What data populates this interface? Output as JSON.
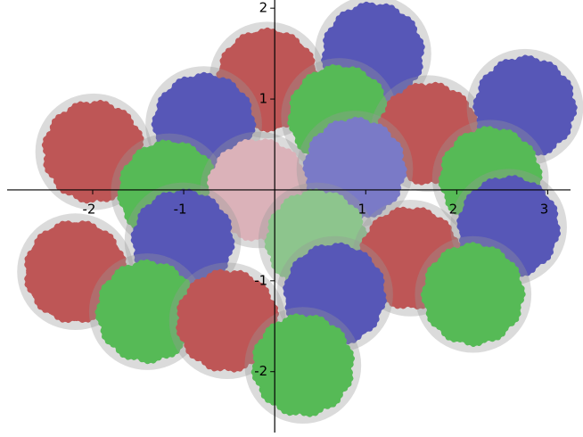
{
  "chart_data": {
    "type": "tiling",
    "xlim": [
      -2.94,
      3.25
    ],
    "ylim": [
      -2.67,
      2.09
    ],
    "xticks": [
      -2,
      -1,
      1,
      2,
      3
    ],
    "yticks": [
      -2,
      -1,
      1,
      2
    ],
    "radius": 0.64,
    "circle_color": "#999999",
    "tiles": [
      {
        "x": -0.08,
        "y": 1.21,
        "color": "#d33333"
      },
      {
        "x": 1.08,
        "y": 1.5,
        "color": "#3535c8"
      },
      {
        "x": -1.99,
        "y": 0.42,
        "color": "#d33333"
      },
      {
        "x": -0.78,
        "y": 0.72,
        "color": "#3535c8"
      },
      {
        "x": 0.71,
        "y": 0.81,
        "color": "#33cc33"
      },
      {
        "x": 1.69,
        "y": 0.62,
        "color": "#d33333"
      },
      {
        "x": 2.75,
        "y": 0.91,
        "color": "#3535c8"
      },
      {
        "x": -1.16,
        "y": -0.02,
        "color": "#33cc33"
      },
      {
        "x": -0.18,
        "y": 0.0,
        "color": "#ffc0cb"
      },
      {
        "x": 0.88,
        "y": 0.23,
        "color": "#6a6ae0"
      },
      {
        "x": 2.37,
        "y": 0.13,
        "color": "#33cc33"
      },
      {
        "x": -2.19,
        "y": -0.9,
        "color": "#d33333"
      },
      {
        "x": -1.01,
        "y": -0.56,
        "color": "#3535c8"
      },
      {
        "x": 0.46,
        "y": -0.56,
        "color": "#88dd88"
      },
      {
        "x": 1.49,
        "y": -0.75,
        "color": "#d33333"
      },
      {
        "x": 2.57,
        "y": -0.41,
        "color": "#3535c8"
      },
      {
        "x": -1.4,
        "y": -1.34,
        "color": "#33cc33"
      },
      {
        "x": -0.52,
        "y": -1.44,
        "color": "#d33333"
      },
      {
        "x": 0.66,
        "y": -1.15,
        "color": "#3535c8"
      },
      {
        "x": 2.18,
        "y": -1.15,
        "color": "#33cc33"
      },
      {
        "x": 0.31,
        "y": -1.93,
        "color": "#33cc33"
      }
    ]
  }
}
